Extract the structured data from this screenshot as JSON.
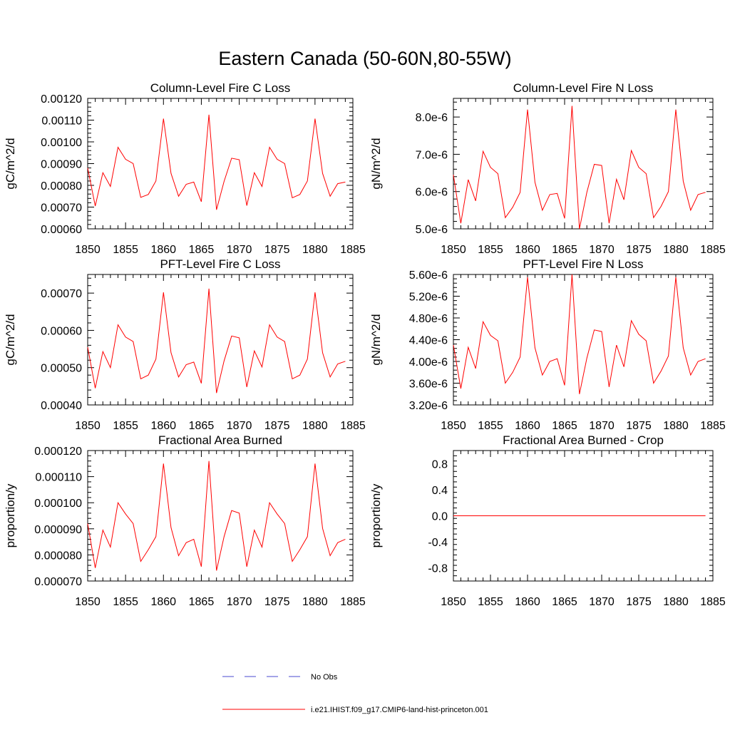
{
  "page_title": "Eastern Canada (50-60N,80-55W)",
  "colors": {
    "model": "#ff0000",
    "obs": "#4a4ad0",
    "axis": "#000000"
  },
  "legend": [
    {
      "label": "No Obs",
      "style": "dashed",
      "color": "#4a4ad0"
    },
    {
      "label": "i.e21.IHIST.f09_g17.CMIP6-land-hist-princeton.001",
      "style": "solid",
      "color": "#ff0000"
    }
  ],
  "chart_data": [
    {
      "type": "line",
      "title": "Column-Level Fire C Loss",
      "ylabel": "gC/m^2/d",
      "xlim": [
        1850,
        1885
      ],
      "ylim": [
        0.0006,
        0.0012
      ],
      "xticks": [
        1850,
        1855,
        1860,
        1865,
        1870,
        1875,
        1880,
        1885
      ],
      "yticks": [
        0.0006,
        0.0007,
        0.0008,
        0.0009,
        0.001,
        0.0011,
        0.0012
      ],
      "ytick_labels": [
        "0.00060",
        "0.00070",
        "0.00080",
        "0.00090",
        "0.00100",
        "0.00110",
        "0.00120"
      ],
      "x": [
        1850,
        1851,
        1852,
        1853,
        1854,
        1855,
        1856,
        1857,
        1858,
        1859,
        1860,
        1861,
        1862,
        1863,
        1864,
        1865,
        1866,
        1867,
        1868,
        1869,
        1870,
        1871,
        1872,
        1873,
        1874,
        1875,
        1876,
        1877,
        1878,
        1879,
        1880,
        1881,
        1882,
        1883,
        1884
      ],
      "series": [
        {
          "values": [
            0.00088,
            0.000705,
            0.000858,
            0.000795,
            0.000975,
            0.00092,
            0.0009,
            0.000745,
            0.000758,
            0.00082,
            0.001107,
            0.000855,
            0.00075,
            0.000805,
            0.000815,
            0.000725,
            0.001125,
            0.000688,
            0.000818,
            0.000925,
            0.000918,
            0.000707,
            0.000858,
            0.000795,
            0.000975,
            0.00092,
            0.0009,
            0.000743,
            0.000758,
            0.00082,
            0.001107,
            0.000855,
            0.00075,
            0.000808,
            0.000815
          ]
        }
      ]
    },
    {
      "type": "line",
      "title": "Column-Level Fire N Loss",
      "ylabel": "gN/m^2/d",
      "xlim": [
        1850,
        1885
      ],
      "ylim": [
        5e-06,
        8.5e-06
      ],
      "xticks": [
        1850,
        1855,
        1860,
        1865,
        1870,
        1875,
        1880,
        1885
      ],
      "yticks": [
        5e-06,
        6e-06,
        7e-06,
        8e-06
      ],
      "ytick_labels": [
        "5.0e-6",
        "6.0e-6",
        "7.0e-6",
        "8.0e-6"
      ],
      "x": [
        1850,
        1851,
        1852,
        1853,
        1854,
        1855,
        1856,
        1857,
        1858,
        1859,
        1860,
        1861,
        1862,
        1863,
        1864,
        1865,
        1866,
        1867,
        1868,
        1869,
        1870,
        1871,
        1872,
        1873,
        1874,
        1875,
        1876,
        1877,
        1878,
        1879,
        1880,
        1881,
        1882,
        1883,
        1884
      ],
      "series": [
        {
          "values": [
            6.45e-06,
            5.15e-06,
            6.32e-06,
            5.75e-06,
            7.08e-06,
            6.65e-06,
            6.48e-06,
            5.3e-06,
            5.58e-06,
            5.98e-06,
            8.2e-06,
            6.25e-06,
            5.5e-06,
            5.92e-06,
            5.95e-06,
            5.28e-06,
            8.3e-06,
            5e-06,
            5.98e-06,
            6.73e-06,
            6.7e-06,
            5.15e-06,
            6.33e-06,
            5.78e-06,
            7.1e-06,
            6.65e-06,
            6.48e-06,
            5.3e-06,
            5.6e-06,
            6e-06,
            8.2e-06,
            6.28e-06,
            5.5e-06,
            5.92e-06,
            5.98e-06
          ]
        }
      ]
    },
    {
      "type": "line",
      "title": "PFT-Level Fire C Loss",
      "ylabel": "gC/m^2/d",
      "xlim": [
        1850,
        1885
      ],
      "ylim": [
        0.0004,
        0.00075
      ],
      "xticks": [
        1850,
        1855,
        1860,
        1865,
        1870,
        1875,
        1880,
        1885
      ],
      "yticks": [
        0.0004,
        0.0005,
        0.0006,
        0.0007
      ],
      "ytick_labels": [
        "0.00040",
        "0.00050",
        "0.00060",
        "0.00070"
      ],
      "x": [
        1850,
        1851,
        1852,
        1853,
        1854,
        1855,
        1856,
        1857,
        1858,
        1859,
        1860,
        1861,
        1862,
        1863,
        1864,
        1865,
        1866,
        1867,
        1868,
        1869,
        1870,
        1871,
        1872,
        1873,
        1874,
        1875,
        1876,
        1877,
        1878,
        1879,
        1880,
        1881,
        1882,
        1883,
        1884
      ],
      "series": [
        {
          "values": [
            0.000555,
            0.000445,
            0.000543,
            0.0005,
            0.000615,
            0.000582,
            0.00057,
            0.00047,
            0.00048,
            0.000523,
            0.000702,
            0.00054,
            0.000475,
            0.000508,
            0.000515,
            0.000458,
            0.000712,
            0.000432,
            0.000518,
            0.000585,
            0.00058,
            0.000448,
            0.000545,
            0.000502,
            0.000615,
            0.000582,
            0.00057,
            0.00047,
            0.00048,
            0.000523,
            0.000702,
            0.00054,
            0.000475,
            0.00051,
            0.000517
          ]
        }
      ]
    },
    {
      "type": "line",
      "title": "PFT-Level Fire N Loss",
      "ylabel": "gN/m^2/d",
      "xlim": [
        1850,
        1885
      ],
      "ylim": [
        3.2e-06,
        5.6e-06
      ],
      "xticks": [
        1850,
        1855,
        1860,
        1865,
        1870,
        1875,
        1880,
        1885
      ],
      "yticks": [
        3.2e-06,
        3.6e-06,
        4e-06,
        4.4e-06,
        4.8e-06,
        5.2e-06,
        5.6e-06
      ],
      "ytick_labels": [
        "3.20e-6",
        "3.60e-6",
        "4.00e-6",
        "4.40e-6",
        "4.80e-6",
        "5.20e-6",
        "5.60e-6"
      ],
      "x": [
        1850,
        1851,
        1852,
        1853,
        1854,
        1855,
        1856,
        1857,
        1858,
        1859,
        1860,
        1861,
        1862,
        1863,
        1864,
        1865,
        1866,
        1867,
        1868,
        1869,
        1870,
        1871,
        1872,
        1873,
        1874,
        1875,
        1876,
        1877,
        1878,
        1879,
        1880,
        1881,
        1882,
        1883,
        1884
      ],
      "series": [
        {
          "values": [
            4.3e-06,
            3.5e-06,
            4.26e-06,
            3.87e-06,
            4.73e-06,
            4.48e-06,
            4.38e-06,
            3.6e-06,
            3.8e-06,
            4.08e-06,
            5.55e-06,
            4.25e-06,
            3.75e-06,
            4e-06,
            4.05e-06,
            3.56e-06,
            5.6e-06,
            3.4e-06,
            4.06e-06,
            4.58e-06,
            4.55e-06,
            3.53e-06,
            4.3e-06,
            3.9e-06,
            4.75e-06,
            4.5e-06,
            4.38e-06,
            3.6e-06,
            3.82e-06,
            4.1e-06,
            5.55e-06,
            4.25e-06,
            3.75e-06,
            4e-06,
            4.05e-06
          ]
        }
      ]
    },
    {
      "type": "line",
      "title": "Fractional Area Burned",
      "ylabel": "proportion/y",
      "xlim": [
        1850,
        1885
      ],
      "ylim": [
        7e-05,
        0.00012
      ],
      "xticks": [
        1850,
        1855,
        1860,
        1865,
        1870,
        1875,
        1880,
        1885
      ],
      "yticks": [
        7e-05,
        8e-05,
        9e-05,
        0.0001,
        0.00011,
        0.00012
      ],
      "ytick_labels": [
        "0.000070",
        "0.000080",
        "0.000090",
        "0.000100",
        "0.000110",
        "0.000120"
      ],
      "x": [
        1850,
        1851,
        1852,
        1853,
        1854,
        1855,
        1856,
        1857,
        1858,
        1859,
        1860,
        1861,
        1862,
        1863,
        1864,
        1865,
        1866,
        1867,
        1868,
        1869,
        1870,
        1871,
        1872,
        1873,
        1874,
        1875,
        1876,
        1877,
        1878,
        1879,
        1880,
        1881,
        1882,
        1883,
        1884
      ],
      "series": [
        {
          "values": [
            9.2e-05,
            7.5e-05,
            8.95e-05,
            8.3e-05,
            0.0001,
            9.57e-05,
            9.2e-05,
            7.75e-05,
            8.2e-05,
            8.7e-05,
            0.000115,
            9.05e-05,
            7.97e-05,
            8.47e-05,
            8.6e-05,
            7.55e-05,
            0.000116,
            7.4e-05,
            8.7e-05,
            9.7e-05,
            9.6e-05,
            7.55e-05,
            8.95e-05,
            8.3e-05,
            0.0001,
            9.57e-05,
            9.2e-05,
            7.75e-05,
            8.2e-05,
            8.7e-05,
            0.000115,
            9.02e-05,
            7.97e-05,
            8.47e-05,
            8.6e-05
          ]
        }
      ]
    },
    {
      "type": "line",
      "title": "Fractional Area Burned - Crop",
      "ylabel": "proportion/y",
      "xlim": [
        1850,
        1885
      ],
      "ylim": [
        -1.0,
        1.0
      ],
      "xticks": [
        1850,
        1855,
        1860,
        1865,
        1870,
        1875,
        1880,
        1885
      ],
      "yticks": [
        -0.8,
        -0.4,
        0.0,
        0.4,
        0.8
      ],
      "ytick_labels": [
        "-0.8",
        "-0.4",
        "0.0",
        "0.4",
        "0.8"
      ],
      "x": [
        1850,
        1884
      ],
      "series": [
        {
          "values": [
            0.0,
            0.0
          ]
        }
      ]
    }
  ]
}
